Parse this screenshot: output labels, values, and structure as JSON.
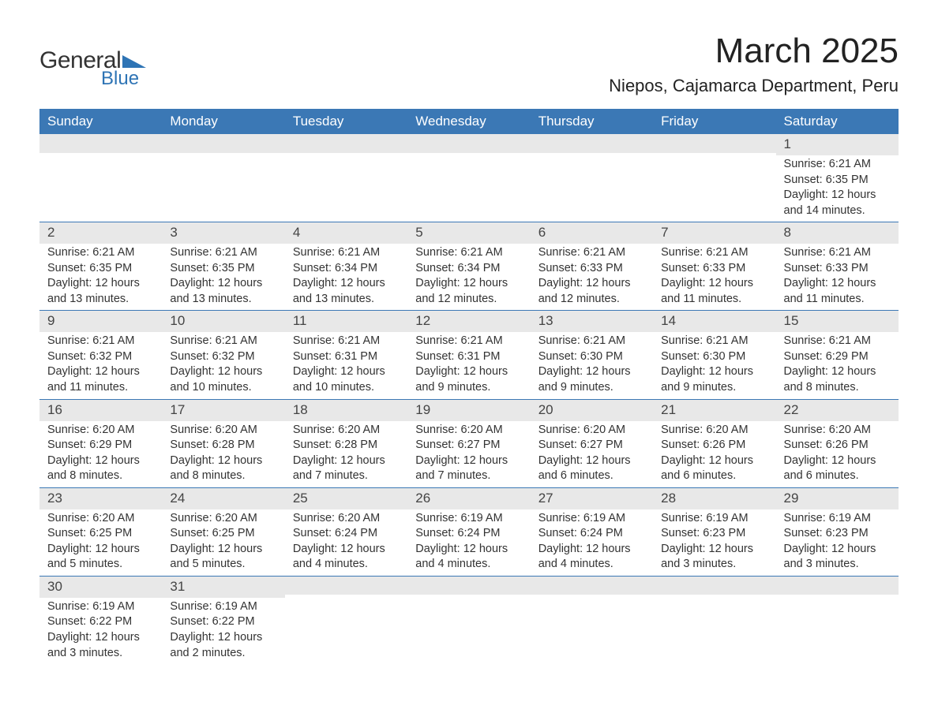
{
  "logo": {
    "text1": "General",
    "text2": "Blue",
    "icon_color": "#2e74b5"
  },
  "title": "March 2025",
  "location": "Niepos, Cajamarca Department, Peru",
  "colors": {
    "header_bg": "#3b78b5",
    "header_fg": "#ffffff",
    "daynum_bg": "#e8e8e8",
    "row_divider": "#3b78b5",
    "text": "#333333"
  },
  "fonts": {
    "title_size": 44,
    "location_size": 22,
    "header_size": 17,
    "cell_size": 14.5
  },
  "day_headers": [
    "Sunday",
    "Monday",
    "Tuesday",
    "Wednesday",
    "Thursday",
    "Friday",
    "Saturday"
  ],
  "weeks": [
    [
      null,
      null,
      null,
      null,
      null,
      null,
      {
        "n": "1",
        "sunrise": "Sunrise: 6:21 AM",
        "sunset": "Sunset: 6:35 PM",
        "day1": "Daylight: 12 hours",
        "day2": "and 14 minutes."
      }
    ],
    [
      {
        "n": "2",
        "sunrise": "Sunrise: 6:21 AM",
        "sunset": "Sunset: 6:35 PM",
        "day1": "Daylight: 12 hours",
        "day2": "and 13 minutes."
      },
      {
        "n": "3",
        "sunrise": "Sunrise: 6:21 AM",
        "sunset": "Sunset: 6:35 PM",
        "day1": "Daylight: 12 hours",
        "day2": "and 13 minutes."
      },
      {
        "n": "4",
        "sunrise": "Sunrise: 6:21 AM",
        "sunset": "Sunset: 6:34 PM",
        "day1": "Daylight: 12 hours",
        "day2": "and 13 minutes."
      },
      {
        "n": "5",
        "sunrise": "Sunrise: 6:21 AM",
        "sunset": "Sunset: 6:34 PM",
        "day1": "Daylight: 12 hours",
        "day2": "and 12 minutes."
      },
      {
        "n": "6",
        "sunrise": "Sunrise: 6:21 AM",
        "sunset": "Sunset: 6:33 PM",
        "day1": "Daylight: 12 hours",
        "day2": "and 12 minutes."
      },
      {
        "n": "7",
        "sunrise": "Sunrise: 6:21 AM",
        "sunset": "Sunset: 6:33 PM",
        "day1": "Daylight: 12 hours",
        "day2": "and 11 minutes."
      },
      {
        "n": "8",
        "sunrise": "Sunrise: 6:21 AM",
        "sunset": "Sunset: 6:33 PM",
        "day1": "Daylight: 12 hours",
        "day2": "and 11 minutes."
      }
    ],
    [
      {
        "n": "9",
        "sunrise": "Sunrise: 6:21 AM",
        "sunset": "Sunset: 6:32 PM",
        "day1": "Daylight: 12 hours",
        "day2": "and 11 minutes."
      },
      {
        "n": "10",
        "sunrise": "Sunrise: 6:21 AM",
        "sunset": "Sunset: 6:32 PM",
        "day1": "Daylight: 12 hours",
        "day2": "and 10 minutes."
      },
      {
        "n": "11",
        "sunrise": "Sunrise: 6:21 AM",
        "sunset": "Sunset: 6:31 PM",
        "day1": "Daylight: 12 hours",
        "day2": "and 10 minutes."
      },
      {
        "n": "12",
        "sunrise": "Sunrise: 6:21 AM",
        "sunset": "Sunset: 6:31 PM",
        "day1": "Daylight: 12 hours",
        "day2": "and 9 minutes."
      },
      {
        "n": "13",
        "sunrise": "Sunrise: 6:21 AM",
        "sunset": "Sunset: 6:30 PM",
        "day1": "Daylight: 12 hours",
        "day2": "and 9 minutes."
      },
      {
        "n": "14",
        "sunrise": "Sunrise: 6:21 AM",
        "sunset": "Sunset: 6:30 PM",
        "day1": "Daylight: 12 hours",
        "day2": "and 9 minutes."
      },
      {
        "n": "15",
        "sunrise": "Sunrise: 6:21 AM",
        "sunset": "Sunset: 6:29 PM",
        "day1": "Daylight: 12 hours",
        "day2": "and 8 minutes."
      }
    ],
    [
      {
        "n": "16",
        "sunrise": "Sunrise: 6:20 AM",
        "sunset": "Sunset: 6:29 PM",
        "day1": "Daylight: 12 hours",
        "day2": "and 8 minutes."
      },
      {
        "n": "17",
        "sunrise": "Sunrise: 6:20 AM",
        "sunset": "Sunset: 6:28 PM",
        "day1": "Daylight: 12 hours",
        "day2": "and 8 minutes."
      },
      {
        "n": "18",
        "sunrise": "Sunrise: 6:20 AM",
        "sunset": "Sunset: 6:28 PM",
        "day1": "Daylight: 12 hours",
        "day2": "and 7 minutes."
      },
      {
        "n": "19",
        "sunrise": "Sunrise: 6:20 AM",
        "sunset": "Sunset: 6:27 PM",
        "day1": "Daylight: 12 hours",
        "day2": "and 7 minutes."
      },
      {
        "n": "20",
        "sunrise": "Sunrise: 6:20 AM",
        "sunset": "Sunset: 6:27 PM",
        "day1": "Daylight: 12 hours",
        "day2": "and 6 minutes."
      },
      {
        "n": "21",
        "sunrise": "Sunrise: 6:20 AM",
        "sunset": "Sunset: 6:26 PM",
        "day1": "Daylight: 12 hours",
        "day2": "and 6 minutes."
      },
      {
        "n": "22",
        "sunrise": "Sunrise: 6:20 AM",
        "sunset": "Sunset: 6:26 PM",
        "day1": "Daylight: 12 hours",
        "day2": "and 6 minutes."
      }
    ],
    [
      {
        "n": "23",
        "sunrise": "Sunrise: 6:20 AM",
        "sunset": "Sunset: 6:25 PM",
        "day1": "Daylight: 12 hours",
        "day2": "and 5 minutes."
      },
      {
        "n": "24",
        "sunrise": "Sunrise: 6:20 AM",
        "sunset": "Sunset: 6:25 PM",
        "day1": "Daylight: 12 hours",
        "day2": "and 5 minutes."
      },
      {
        "n": "25",
        "sunrise": "Sunrise: 6:20 AM",
        "sunset": "Sunset: 6:24 PM",
        "day1": "Daylight: 12 hours",
        "day2": "and 4 minutes."
      },
      {
        "n": "26",
        "sunrise": "Sunrise: 6:19 AM",
        "sunset": "Sunset: 6:24 PM",
        "day1": "Daylight: 12 hours",
        "day2": "and 4 minutes."
      },
      {
        "n": "27",
        "sunrise": "Sunrise: 6:19 AM",
        "sunset": "Sunset: 6:24 PM",
        "day1": "Daylight: 12 hours",
        "day2": "and 4 minutes."
      },
      {
        "n": "28",
        "sunrise": "Sunrise: 6:19 AM",
        "sunset": "Sunset: 6:23 PM",
        "day1": "Daylight: 12 hours",
        "day2": "and 3 minutes."
      },
      {
        "n": "29",
        "sunrise": "Sunrise: 6:19 AM",
        "sunset": "Sunset: 6:23 PM",
        "day1": "Daylight: 12 hours",
        "day2": "and 3 minutes."
      }
    ],
    [
      {
        "n": "30",
        "sunrise": "Sunrise: 6:19 AM",
        "sunset": "Sunset: 6:22 PM",
        "day1": "Daylight: 12 hours",
        "day2": "and 3 minutes."
      },
      {
        "n": "31",
        "sunrise": "Sunrise: 6:19 AM",
        "sunset": "Sunset: 6:22 PM",
        "day1": "Daylight: 12 hours",
        "day2": "and 2 minutes."
      },
      null,
      null,
      null,
      null,
      null
    ]
  ]
}
